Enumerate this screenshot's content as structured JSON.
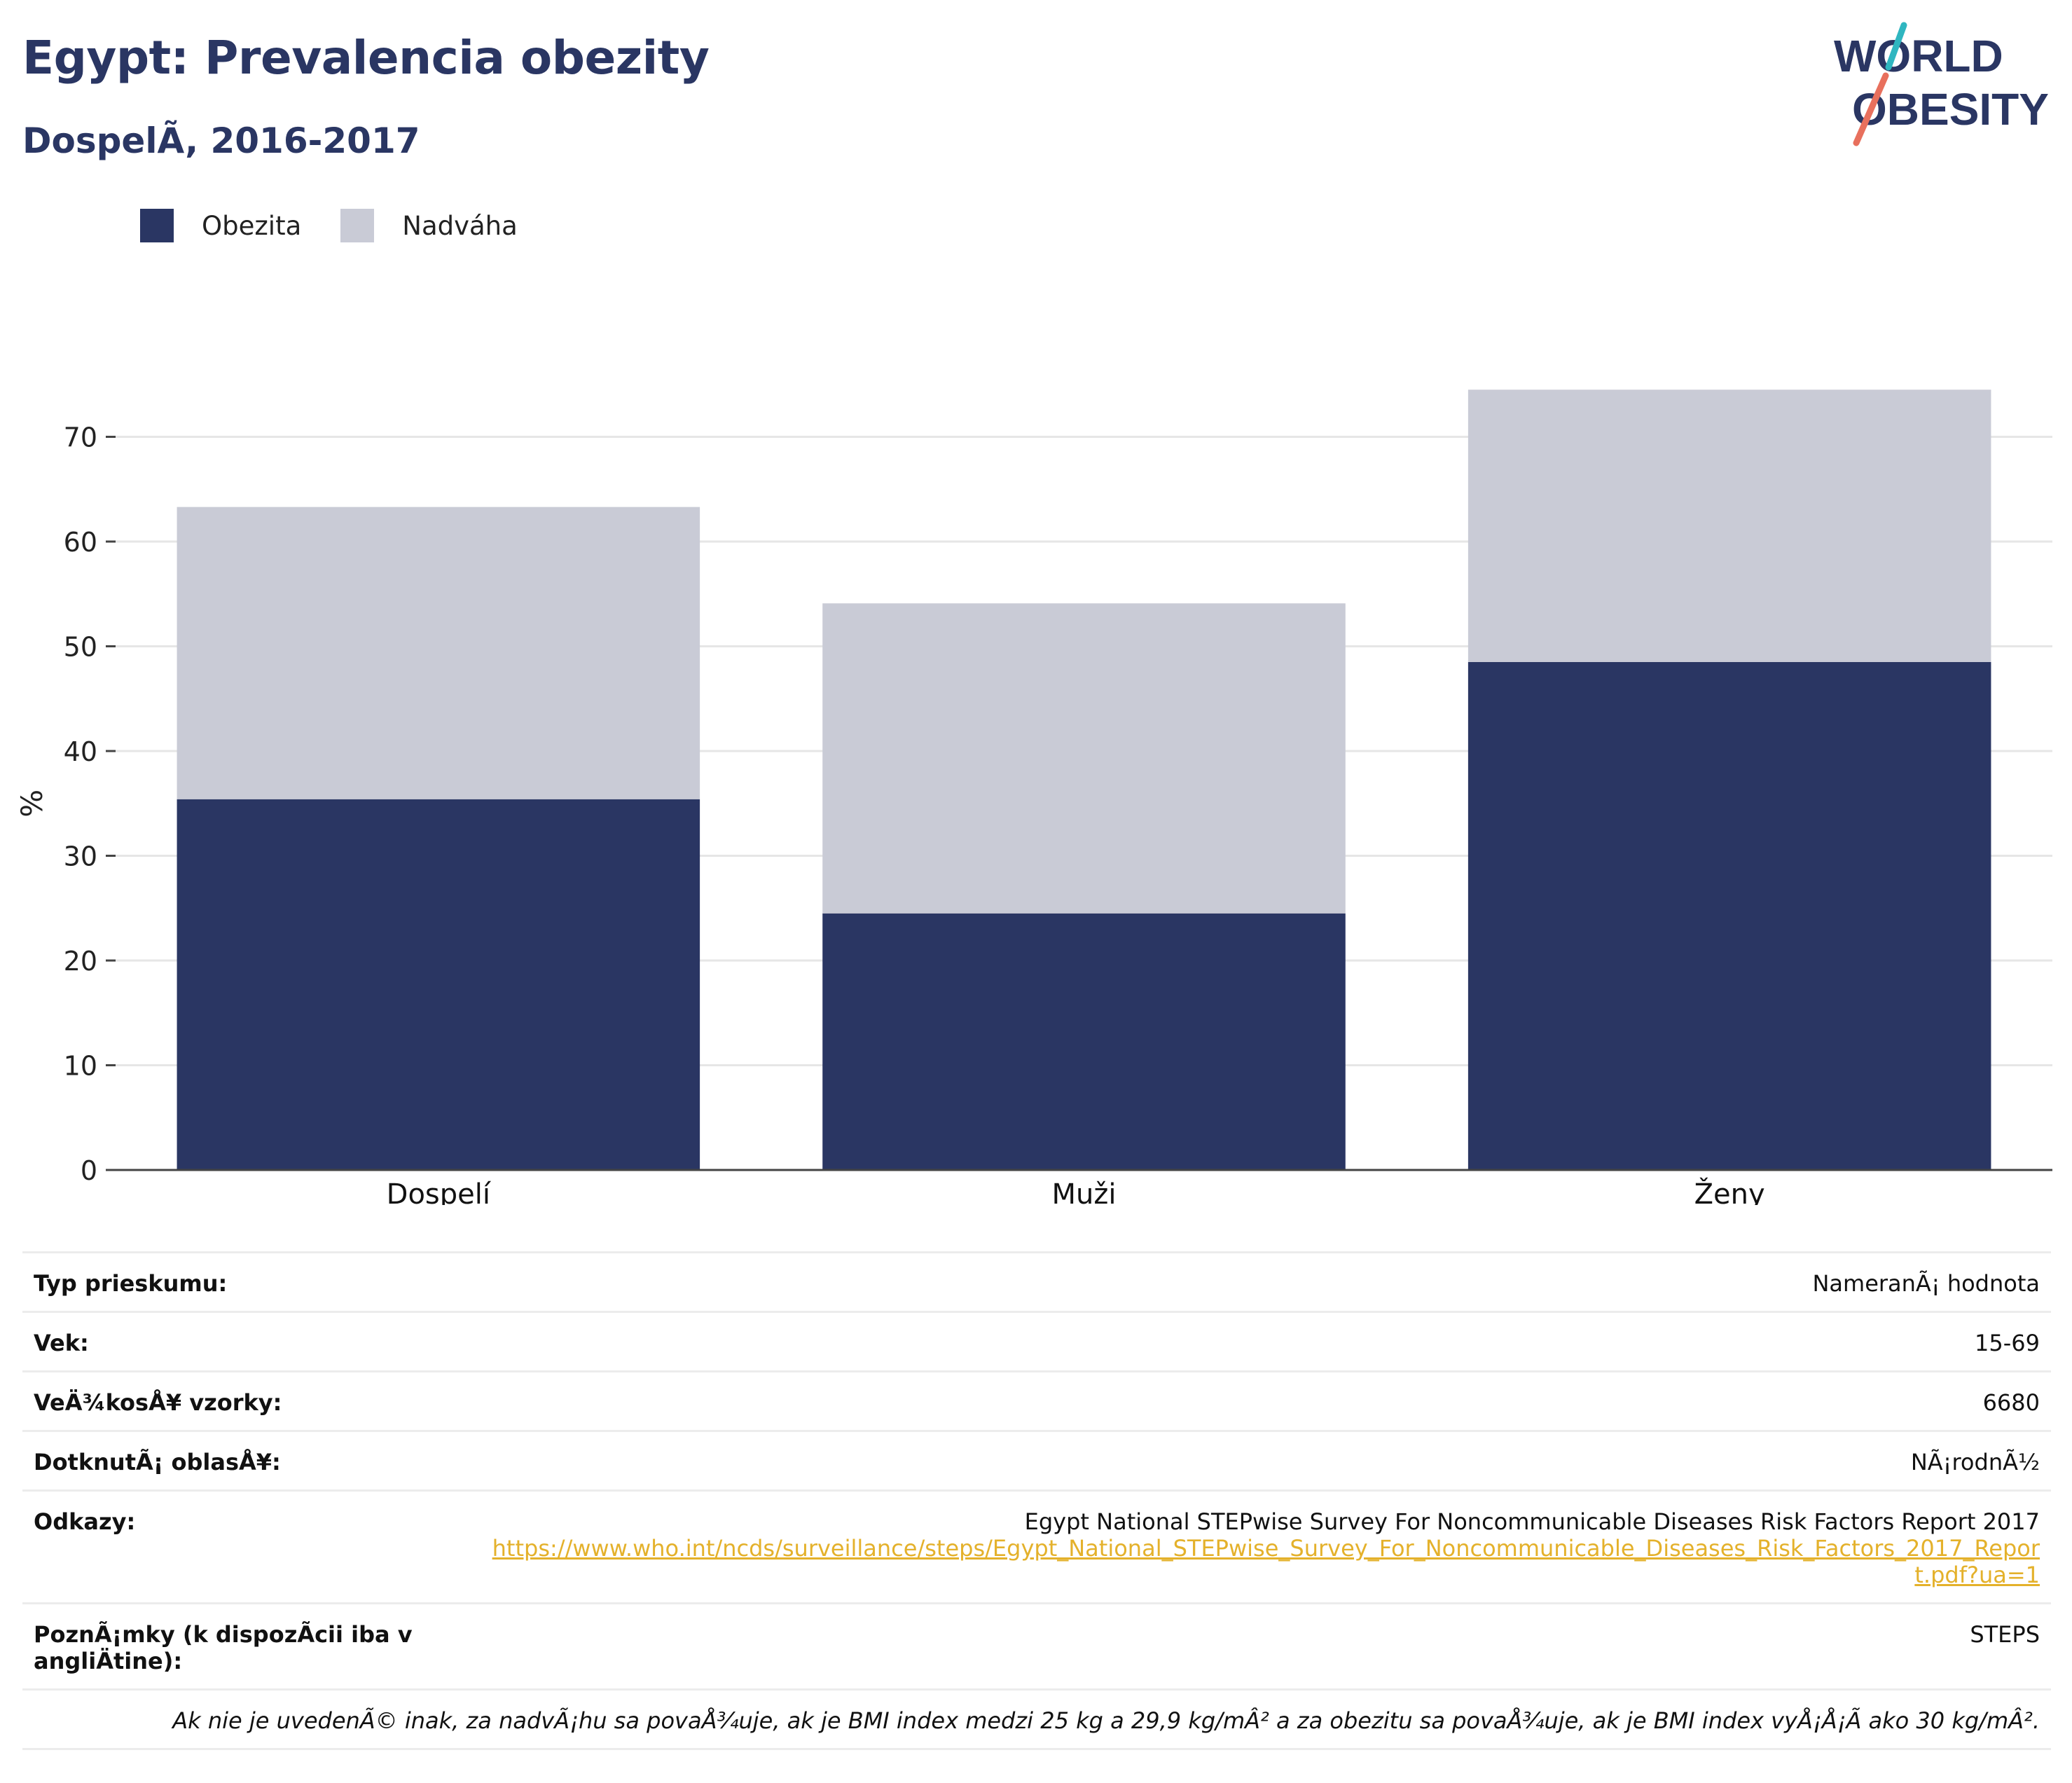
{
  "header": {
    "title": "Egypt: Prevalencia obezity",
    "subtitle": "DospelÃ, 2016-2017"
  },
  "logo": {
    "line1": "WORLD",
    "line2": "OBESITY"
  },
  "colors": {
    "obesity": "#2a3663",
    "overweight": "#c9cbd6",
    "title": "#2a3663",
    "link": "#e4b12b"
  },
  "chart_data": {
    "type": "bar",
    "stacked": true,
    "categories": [
      "Dospelí",
      "Muži",
      "Ženy"
    ],
    "series": [
      {
        "name": "Obezita",
        "color": "#2a3663",
        "values": [
          35.4,
          24.5,
          48.5
        ]
      },
      {
        "name": "Nadváha",
        "color": "#c9cbd6",
        "values": [
          27.9,
          29.6,
          26.0
        ]
      }
    ],
    "ylabel": "%",
    "ylim": [
      0,
      75
    ],
    "yticks": [
      0,
      10,
      20,
      30,
      40,
      50,
      60,
      70
    ],
    "grid": true,
    "legend": "top-left"
  },
  "meta": [
    {
      "key": "Typ prieskumu:",
      "value": "NameranÃ¡ hodnota"
    },
    {
      "key": "Vek:",
      "value": "15-69"
    },
    {
      "key": "VeÄ¾kosÅ¥ vzorky:",
      "value": "6680"
    },
    {
      "key": "DotknutÃ¡ oblasÅ¥:",
      "value": "NÃ¡rodnÃ½"
    },
    {
      "key": "Odkazy:",
      "value": "Egypt National STEPwise Survey For Noncommunicable Diseases Risk Factors Report 2017",
      "link": "https://www.who.int/ncds/surveillance/steps/Egypt_National_STEPwise_Survey_For_Noncommunicable_Diseases_Risk_Factors_2017_Report.pdf?ua=1"
    },
    {
      "key": "PoznÃ¡mky (k dispozÃcii iba v angliÄtine):",
      "value": "STEPS"
    }
  ],
  "note": "Ak nie je uvedenÃ© inak, za nadvÃ¡hu sa povaÅ¾uje, ak je BMI index medzi 25 kg a 29,9 kg/mÂ² a za obezitu sa povaÅ¾uje, ak je BMI index vyÅ¡Å¡Ã ako 30 kg/mÂ²."
}
